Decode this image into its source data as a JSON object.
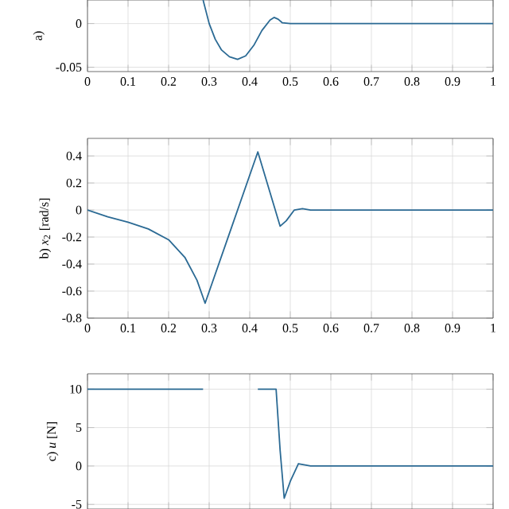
{
  "chart_data": [
    {
      "type": "line",
      "ylabel": "a)",
      "xlim": [
        0,
        1
      ],
      "ylim": [
        -0.055,
        0.027
      ],
      "xticks": [
        0,
        0.1,
        0.2,
        0.3,
        0.4,
        0.5,
        0.6,
        0.7,
        0.8,
        0.9,
        1
      ],
      "yticks": [
        -0.05,
        0
      ],
      "grid": true,
      "series": [
        {
          "color": "#2b6a94",
          "x": [
            0.285,
            0.3,
            0.315,
            0.33,
            0.35,
            0.37,
            0.39,
            0.41,
            0.43,
            0.45,
            0.46,
            0.47,
            0.48,
            0.5,
            0.6,
            0.8,
            1
          ],
          "values": [
            0.027,
            0.0,
            -0.018,
            -0.03,
            -0.038,
            -0.041,
            -0.037,
            -0.025,
            -0.008,
            0.004,
            0.007,
            0.005,
            0.001,
            0,
            0,
            0,
            0
          ]
        }
      ]
    },
    {
      "type": "line",
      "ylabel": "b) *x*$_{2}$ [rad/s]",
      "xlim": [
        0,
        1
      ],
      "ylim": [
        -0.8,
        0.53
      ],
      "xticks": [
        0,
        0.1,
        0.2,
        0.3,
        0.4,
        0.5,
        0.6,
        0.7,
        0.8,
        0.9,
        1
      ],
      "yticks": [
        -0.8,
        -0.6,
        -0.4,
        -0.2,
        0,
        0.2,
        0.4
      ],
      "grid": true,
      "series": [
        {
          "color": "#2b6a94",
          "x": [
            0,
            0.05,
            0.1,
            0.15,
            0.2,
            0.24,
            0.27,
            0.29,
            0.355,
            0.42,
            0.45,
            0.475,
            0.49,
            0.51,
            0.53,
            0.55,
            0.7,
            1
          ],
          "values": [
            0,
            -0.05,
            -0.09,
            -0.14,
            -0.22,
            -0.35,
            -0.52,
            -0.69,
            -0.13,
            0.43,
            0.13,
            -0.12,
            -0.08,
            0.0,
            0.01,
            0,
            0,
            0
          ]
        }
      ]
    },
    {
      "type": "line",
      "ylabel": "c) *u* [N]",
      "xlim": [
        0,
        1
      ],
      "ylim": [
        -5.6,
        12
      ],
      "xticks": [
        0,
        0.1,
        0.2,
        0.3,
        0.4,
        0.5,
        0.6,
        0.7,
        0.8,
        0.9,
        1
      ],
      "yticks": [
        -5,
        0,
        5,
        10
      ],
      "grid": true,
      "tick_labels": "y",
      "series": [
        {
          "color": "#2b6a94",
          "x": [
            0,
            0.1,
            0.2,
            0.285,
            0.29,
            0.35,
            0.41,
            0.42,
            0.44,
            0.465,
            0.475,
            0.485,
            0.5,
            0.52,
            0.55,
            0.7,
            1
          ],
          "values": [
            10,
            10,
            10,
            10,
            null,
            null,
            null,
            10,
            10,
            10,
            2,
            -4.2,
            -2,
            0.3,
            0,
            0,
            0
          ]
        }
      ]
    }
  ]
}
